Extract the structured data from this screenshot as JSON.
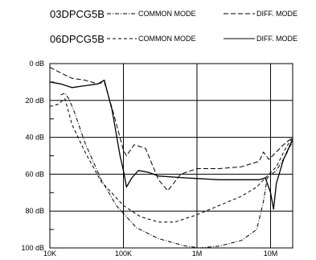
{
  "chart_data": {
    "type": "line",
    "title": "",
    "xlabel": "",
    "ylabel": "",
    "x_scale": "log",
    "xlim": [
      10000,
      20000000
    ],
    "ylim": [
      0,
      100
    ],
    "y_inverted": true,
    "grid": true,
    "legend_position": "top",
    "x_ticks": [
      {
        "value": 10000,
        "label": "10K"
      },
      {
        "value": 100000,
        "label": "100K"
      },
      {
        "value": 1000000,
        "label": "1M"
      },
      {
        "value": 10000000,
        "label": "10M"
      }
    ],
    "y_ticks": [
      {
        "value": 0,
        "label": "0 dB"
      },
      {
        "value": 20,
        "label": "20 dB"
      },
      {
        "value": 40,
        "label": "40 dB"
      },
      {
        "value": 60,
        "label": "60 dB"
      },
      {
        "value": 80,
        "label": "80 dB"
      },
      {
        "value": 100,
        "label": "100 dB"
      }
    ],
    "legend": [
      {
        "model": "03DPCG5B",
        "entries": [
          {
            "label": "COMMON MODE",
            "series": 0
          },
          {
            "label": "DIFF. MODE",
            "series": 1
          }
        ]
      },
      {
        "model": "06DPCG5B",
        "entries": [
          {
            "label": "COMMON MODE",
            "series": 2
          },
          {
            "label": "DIFF. MODE",
            "series": 3
          }
        ]
      }
    ],
    "series": [
      {
        "group": "03DPCG5B",
        "mode": "COMMON MODE",
        "style": "dashdot",
        "points": [
          [
            14000,
            17
          ],
          [
            16000,
            16
          ],
          [
            18000,
            19
          ],
          [
            21000,
            25
          ],
          [
            30000,
            43
          ],
          [
            50000,
            63
          ],
          [
            80000,
            77
          ],
          [
            150000,
            89
          ],
          [
            300000,
            95
          ],
          [
            700000,
            99
          ],
          [
            1100000,
            100
          ],
          [
            2000000,
            99
          ],
          [
            4000000,
            96
          ],
          [
            6500000,
            90
          ],
          [
            8000000,
            75
          ],
          [
            9000000,
            62
          ],
          [
            12000000,
            58
          ],
          [
            16000000,
            50
          ],
          [
            20000000,
            42
          ]
        ]
      },
      {
        "group": "03DPCG5B",
        "mode": "DIFF. MODE",
        "style": "dashed",
        "points": [
          [
            10000,
            2
          ],
          [
            14000,
            5
          ],
          [
            20000,
            8
          ],
          [
            30000,
            9
          ],
          [
            45000,
            11
          ],
          [
            55000,
            10
          ],
          [
            70000,
            24
          ],
          [
            100000,
            47
          ],
          [
            110000,
            50
          ],
          [
            140000,
            44
          ],
          [
            200000,
            46
          ],
          [
            300000,
            63
          ],
          [
            400000,
            69
          ],
          [
            600000,
            60
          ],
          [
            1000000,
            57
          ],
          [
            2000000,
            57
          ],
          [
            4000000,
            56
          ],
          [
            7000000,
            53
          ],
          [
            8000000,
            48
          ],
          [
            9500000,
            52
          ],
          [
            15000000,
            44
          ],
          [
            20000000,
            40
          ]
        ]
      },
      {
        "group": "06DPCG5B",
        "mode": "COMMON MODE",
        "style": "dash",
        "points": [
          [
            10000,
            23
          ],
          [
            11000,
            23
          ],
          [
            13000,
            22
          ],
          [
            16000,
            19
          ],
          [
            20000,
            33
          ],
          [
            30000,
            48
          ],
          [
            50000,
            64
          ],
          [
            100000,
            77
          ],
          [
            170000,
            83
          ],
          [
            300000,
            86
          ],
          [
            500000,
            86
          ],
          [
            1000000,
            82
          ],
          [
            2000000,
            77
          ],
          [
            4000000,
            72
          ],
          [
            6500000,
            67
          ],
          [
            8500000,
            62
          ],
          [
            12000000,
            56
          ],
          [
            16000000,
            46
          ],
          [
            20000000,
            40
          ]
        ]
      },
      {
        "group": "06DPCG5B",
        "mode": "DIFF. MODE",
        "style": "solid",
        "points": [
          [
            10000,
            10
          ],
          [
            14000,
            11
          ],
          [
            20000,
            13
          ],
          [
            30000,
            12
          ],
          [
            45000,
            11
          ],
          [
            55000,
            9
          ],
          [
            70000,
            25
          ],
          [
            90000,
            50
          ],
          [
            100000,
            58
          ],
          [
            110000,
            67
          ],
          [
            130000,
            62
          ],
          [
            160000,
            58
          ],
          [
            220000,
            59
          ],
          [
            300000,
            61
          ],
          [
            700000,
            62
          ],
          [
            2000000,
            63
          ],
          [
            4000000,
            63
          ],
          [
            7000000,
            63
          ],
          [
            8500000,
            62
          ],
          [
            10000000,
            70
          ],
          [
            11000000,
            79
          ],
          [
            12000000,
            65
          ],
          [
            15000000,
            52
          ],
          [
            20000000,
            41
          ]
        ]
      }
    ]
  }
}
